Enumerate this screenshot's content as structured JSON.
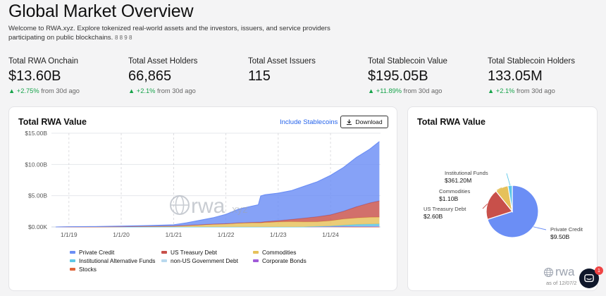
{
  "header": {
    "title": "Global Market Overview",
    "intro": "Welcome to RWA.xyz. Explore tokenized real-world assets and the investors, issuers, and service providers participating on public blockchains.",
    "intro_glyph": "8 8 9 8"
  },
  "stats": [
    {
      "label": "Total RWA Onchain",
      "value": "$13.60B",
      "arrow": "▲",
      "delta": "+2.75%",
      "period": "from 30d ago"
    },
    {
      "label": "Total Asset Holders",
      "value": "66,865",
      "arrow": "▲",
      "delta": "+2.1%",
      "period": "from 30d ago"
    },
    {
      "label": "Total Asset Issuers",
      "value": "115"
    },
    {
      "label": "Total Stablecoin Value",
      "value": "$195.05B",
      "arrow": "▲",
      "delta": "+11.89%",
      "period": "from 30d ago"
    },
    {
      "label": "Total Stablecoin Holders",
      "value": "133.05M",
      "arrow": "▲",
      "delta": "+2.1%",
      "period": "from 30d ago"
    }
  ],
  "value_card": {
    "title": "Total RWA Value",
    "include_link": "Include Stablecoins",
    "download_label": "Download",
    "download_icon": "download-icon"
  },
  "share_card": {
    "title": "Total RWA Value",
    "as_of": "as of 12/07/2"
  },
  "watermark": {
    "mark": "rwa",
    "suffix": ".xyz"
  },
  "chat": {
    "badge_count": "1",
    "icon": "chat-icon"
  },
  "colors": {
    "private_credit": "#6b8ef5",
    "us_treasury": "#c8504a",
    "commodities": "#e6c15a",
    "institutional_funds": "#5ec8e8",
    "non_us_gov": "#b9d9ee",
    "corporate_bonds": "#a05ad8",
    "stocks": "#e0653a",
    "accent": "#2563eb",
    "positive": "#16a34a"
  },
  "chart_data": [
    {
      "type": "area",
      "stacked": true,
      "title": "Total RWA Value",
      "x_ticks": [
        "1/1/19",
        "1/1/20",
        "1/1/21",
        "1/1/22",
        "1/1/23",
        "1/1/24"
      ],
      "y_ticks": [
        "$0.00K",
        "$5.00B",
        "$10.00B",
        "$15.00B"
      ],
      "ylim": [
        0,
        15
      ],
      "y_unit": "B",
      "grid": true,
      "legend_position": "bottom",
      "x": [
        "2018-10-01",
        "2019-01-01",
        "2019-07-01",
        "2020-01-01",
        "2020-07-01",
        "2021-01-01",
        "2021-04-01",
        "2021-07-01",
        "2021-10-01",
        "2022-01-01",
        "2022-04-01",
        "2022-07-01",
        "2022-08-15",
        "2022-09-01",
        "2022-10-01",
        "2023-01-01",
        "2023-04-01",
        "2023-07-01",
        "2023-10-01",
        "2024-01-01",
        "2024-04-01",
        "2024-07-01",
        "2024-10-01",
        "2024-12-07"
      ],
      "series": [
        {
          "name": "Stocks",
          "values": [
            0,
            0,
            0,
            0,
            0,
            0,
            0,
            0,
            0,
            0,
            0,
            0,
            0,
            0,
            0,
            0,
            0,
            0,
            0,
            0,
            0,
            0,
            0,
            0
          ]
        },
        {
          "name": "non-US Government Debt",
          "values": [
            0,
            0,
            0,
            0,
            0,
            0,
            0,
            0,
            0,
            0,
            0,
            0,
            0,
            0,
            0,
            0,
            0,
            0,
            0.02,
            0.03,
            0.05,
            0.06,
            0.06,
            0.07
          ]
        },
        {
          "name": "Corporate Bonds",
          "values": [
            0,
            0,
            0,
            0,
            0,
            0,
            0,
            0,
            0,
            0,
            0,
            0,
            0,
            0,
            0,
            0,
            0,
            0,
            0.01,
            0.01,
            0.02,
            0.03,
            0.03,
            0.04
          ]
        },
        {
          "name": "Institutional Alternative Funds",
          "values": [
            0,
            0,
            0,
            0,
            0,
            0,
            0,
            0,
            0,
            0,
            0,
            0,
            0,
            0,
            0,
            0,
            0,
            0.01,
            0.05,
            0.1,
            0.2,
            0.3,
            0.36,
            0.36
          ]
        },
        {
          "name": "Commodities",
          "values": [
            0,
            0.01,
            0.02,
            0.05,
            0.1,
            0.15,
            0.25,
            0.35,
            0.45,
            0.5,
            0.6,
            0.65,
            0.65,
            0.65,
            0.7,
            0.8,
            0.85,
            0.8,
            0.75,
            0.85,
            1.0,
            1.05,
            1.1,
            1.1
          ]
        },
        {
          "name": "US Treasury Debt",
          "values": [
            0,
            0,
            0,
            0,
            0,
            0,
            0,
            0,
            0.01,
            0.02,
            0.05,
            0.08,
            0.1,
            0.1,
            0.15,
            0.2,
            0.35,
            0.6,
            0.8,
            0.95,
            1.25,
            1.8,
            2.3,
            2.6
          ]
        },
        {
          "name": "Private Credit",
          "values": [
            0,
            0.02,
            0.05,
            0.08,
            0.12,
            0.2,
            0.4,
            0.7,
            1.0,
            1.5,
            2.2,
            2.6,
            2.8,
            4.2,
            4.3,
            4.4,
            4.6,
            5.1,
            5.6,
            6.3,
            7.0,
            7.9,
            8.6,
            9.5
          ]
        }
      ]
    },
    {
      "type": "pie",
      "title": "Total RWA Value",
      "categories": [
        "Private Credit",
        "US Treasury Debt",
        "Commodities",
        "Institutional Funds"
      ],
      "values": [
        9.5,
        2.6,
        1.1,
        0.3612
      ],
      "value_labels": [
        "$9.50B",
        "$2.60B",
        "$1.10B",
        "$361.20M"
      ]
    }
  ]
}
